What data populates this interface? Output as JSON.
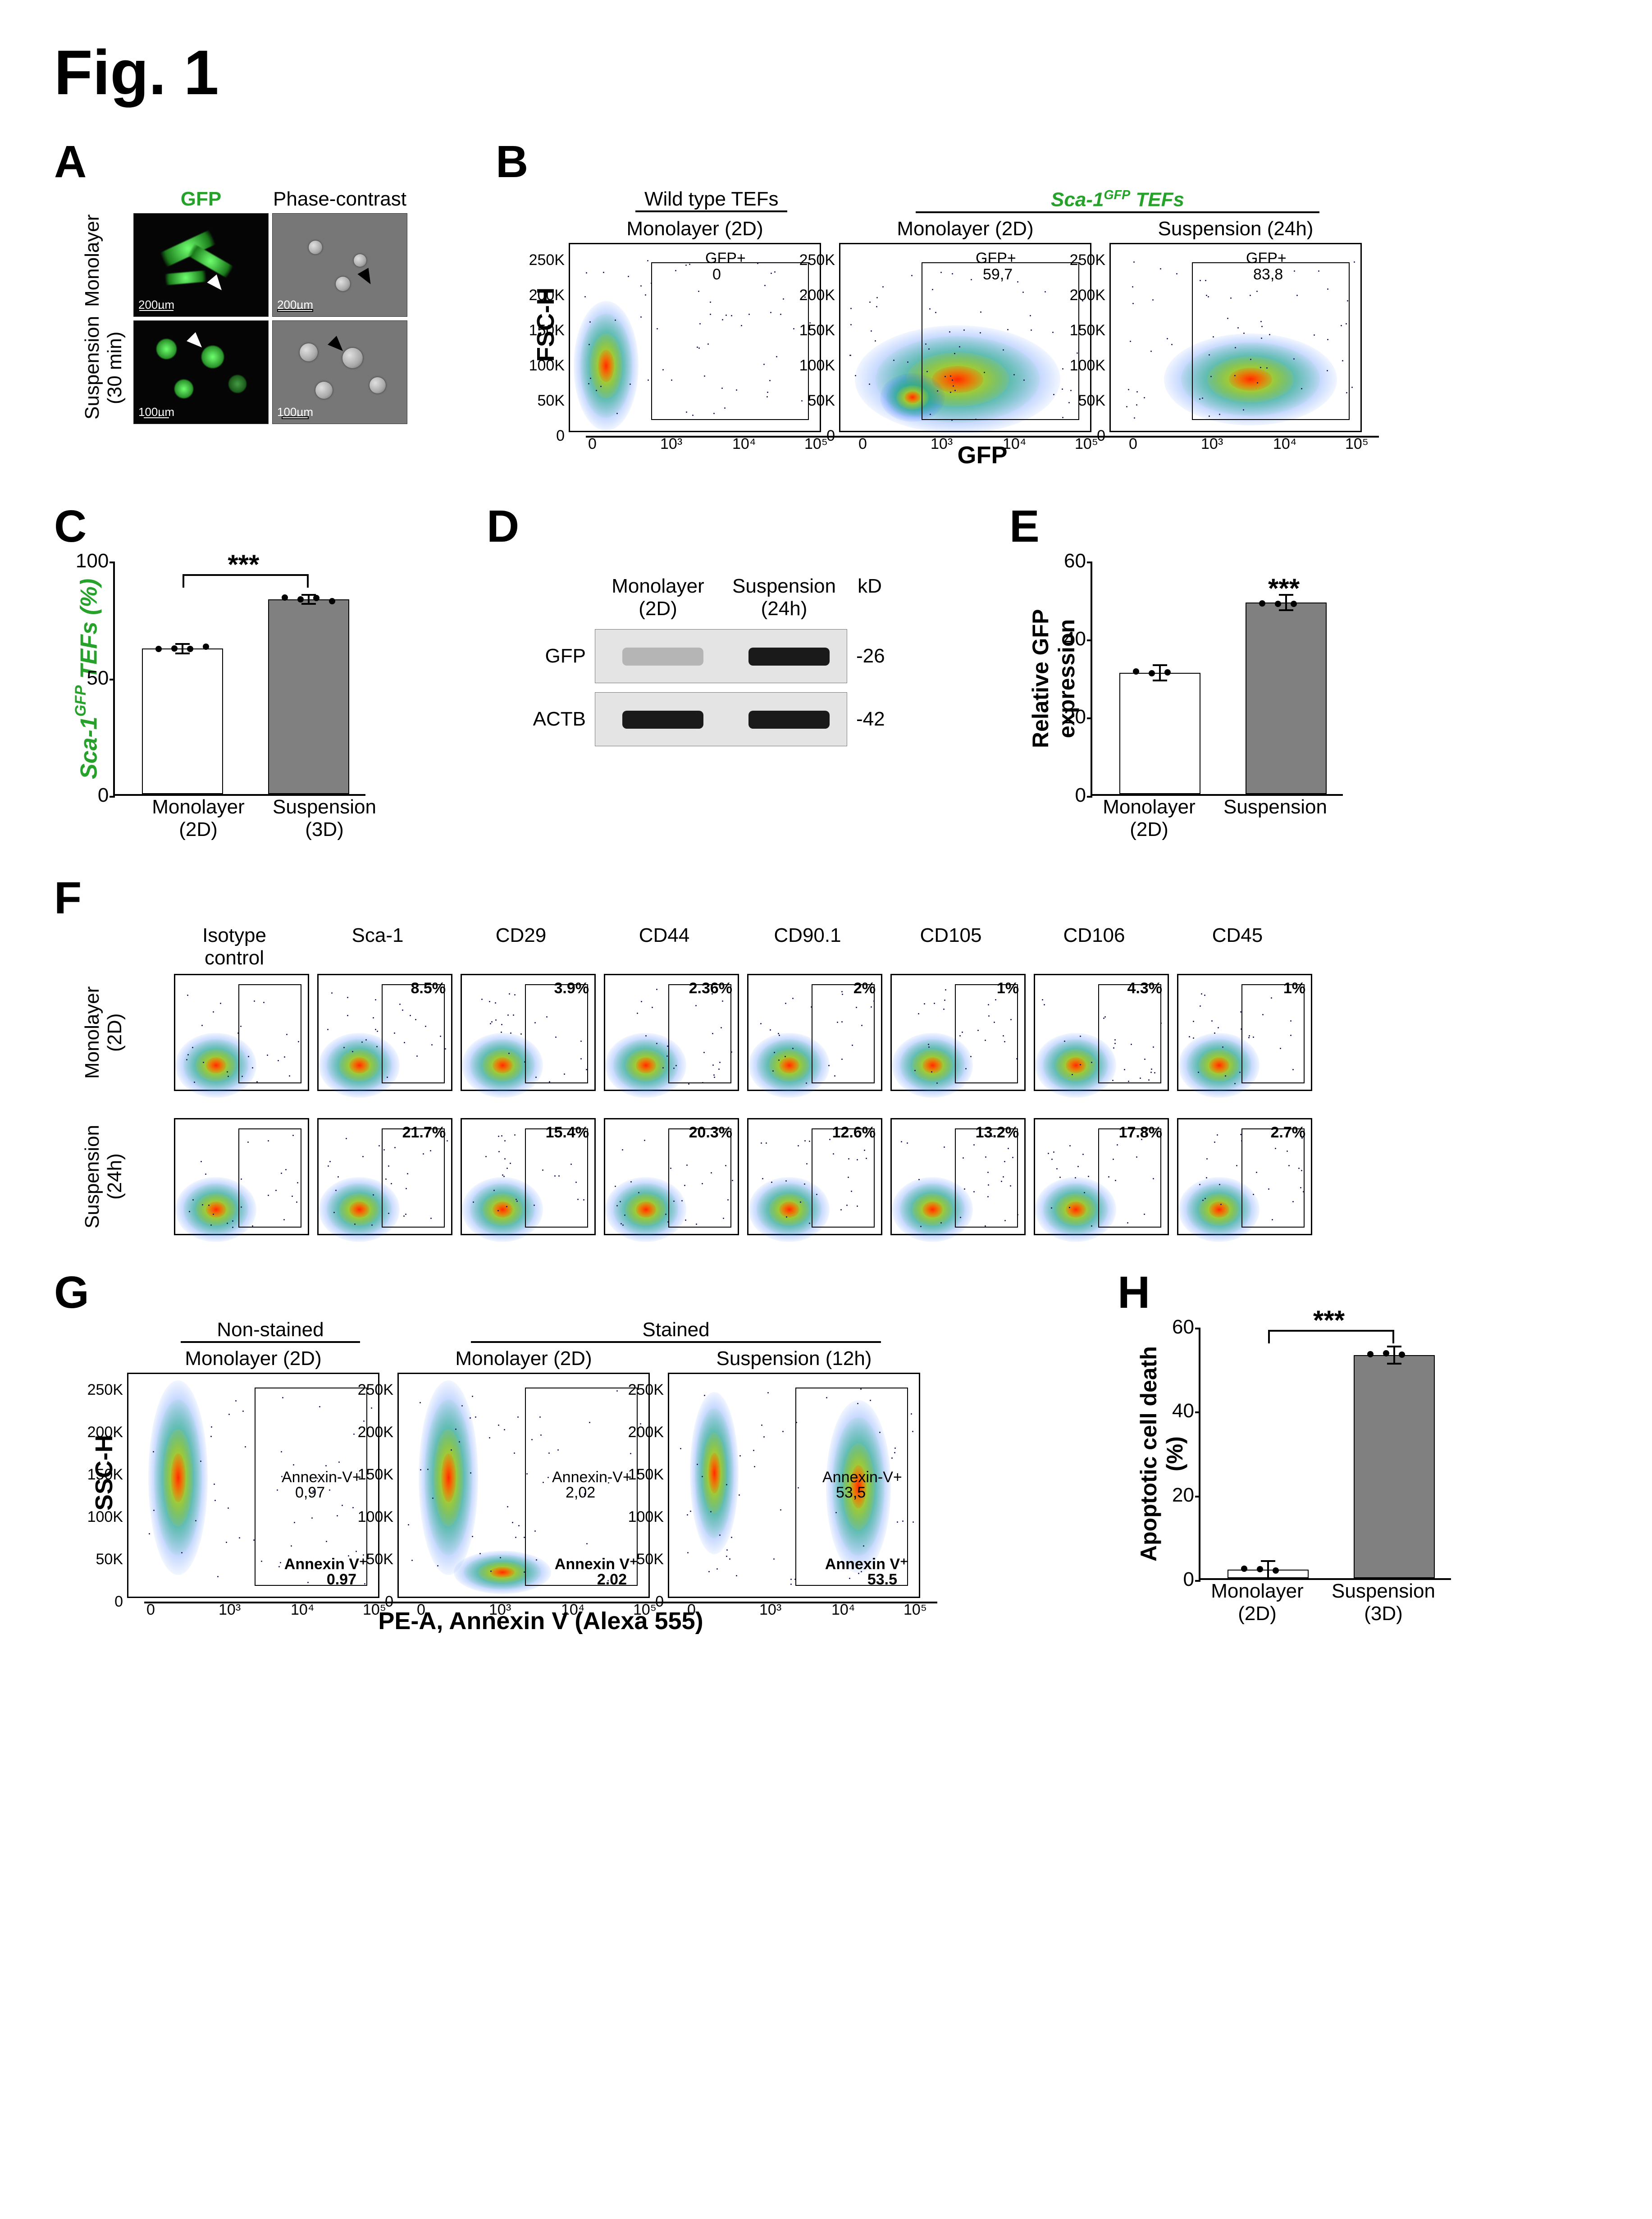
{
  "figure_label": "Fig. 1",
  "colors": {
    "green": "#26a22b",
    "bar_fill_gray": "#808080",
    "bar_fill_white": "#ffffff",
    "heat_core": "#ff2a00",
    "heat_mid": "#ffd400",
    "heat_out": "#29d63a",
    "heat_edge": "#1560ff"
  },
  "A": {
    "col_labels": [
      "GFP",
      "Phase-contrast"
    ],
    "row_labels": [
      "Monolayer",
      "Suspension\n(30 min)"
    ],
    "gfp_label_color": "#26a22b",
    "scalebars": [
      "200µm",
      "200µm",
      "100µm",
      "100µm"
    ]
  },
  "B": {
    "group1": "Wild type TEFs",
    "group2_html": "Sca-1<sup>GFP</sup> TEFs",
    "plot_titles": [
      "Monolayer (2D)",
      "Monolayer (2D)",
      "Suspension (24h)"
    ],
    "gate_label": "GFP+",
    "gate_values": [
      "0",
      "59,7",
      "83,8"
    ],
    "y_axis": "FSC-H",
    "x_axis": "GFP",
    "y_ticks": [
      "0",
      "50K",
      "100K",
      "150K",
      "200K",
      "250K"
    ],
    "x_ticks": [
      "0",
      "10³",
      "10⁴",
      "10⁵"
    ]
  },
  "C": {
    "y_label_html": "Sca-1<sup>GFP</sup> TEFs (%)",
    "y_ticks": [
      0,
      50,
      100
    ],
    "sig": "***",
    "bars": [
      {
        "label": "Monolayer\n(2D)",
        "value": 62,
        "fill": "#ffffff",
        "n_dots": 4
      },
      {
        "label": "Suspension\n(3D)",
        "value": 83,
        "fill": "#808080",
        "n_dots": 4
      }
    ]
  },
  "D": {
    "lane_labels": [
      "Monolayer\n(2D)",
      "Suspension\n(24h)"
    ],
    "kd_label": "kD",
    "rows": [
      {
        "name": "GFP",
        "kd": "-26",
        "band_intensity": [
          0.25,
          1.0
        ]
      },
      {
        "name": "ACTB",
        "kd": "-42",
        "band_intensity": [
          1.0,
          1.0
        ]
      }
    ]
  },
  "E": {
    "y_label": "Relative GFP expression",
    "y_ticks": [
      0,
      20,
      40,
      60
    ],
    "sig": "***",
    "bars": [
      {
        "label": "Monolayer\n(2D)",
        "value": 31,
        "fill": "#ffffff",
        "n_dots": 3
      },
      {
        "label": "Suspension",
        "value": 49,
        "fill": "#808080",
        "n_dots": 3
      }
    ]
  },
  "F": {
    "row_labels": [
      "Monolayer\n(2D)",
      "Suspension\n(24h)"
    ],
    "markers": [
      "Isotype\ncontrol",
      "Sca-1",
      "CD29",
      "CD44",
      "CD90.1",
      "CD105",
      "CD106",
      "CD45"
    ],
    "values": [
      [
        "",
        "8.5%",
        "3.9%",
        "2.36%",
        "2%",
        "1%",
        "4.3%",
        "1%"
      ],
      [
        "",
        "21.7%",
        "15.4%",
        "20.3%",
        "12.6%",
        "13.2%",
        "17.8%",
        "2.7%"
      ]
    ]
  },
  "G": {
    "group1": "Non-stained",
    "group2": "Stained",
    "plot_titles": [
      "Monolayer (2D)",
      "Monolayer (2D)",
      "Suspension (12h)"
    ],
    "gate_label": "Annexin V⁺",
    "gate_values": [
      "0.97",
      "2.02",
      "53.5"
    ],
    "gate_inside_values": [
      "0,97",
      "2,02",
      "53,5"
    ],
    "y_axis": "SSC-H",
    "x_axis": "PE-A, Annexin V (Alexa 555)",
    "y_ticks": [
      "0",
      "50K",
      "100K",
      "150K",
      "200K",
      "250K"
    ],
    "x_ticks": [
      "0",
      "10³",
      "10⁴",
      "10⁵"
    ]
  },
  "H": {
    "y_label": "Apoptotic cell death (%)",
    "y_ticks": [
      0,
      20,
      40,
      60
    ],
    "sig": "***",
    "bars": [
      {
        "label": "Monolayer\n(2D)",
        "value": 2,
        "fill": "#ffffff",
        "n_dots": 3
      },
      {
        "label": "Suspension\n(3D)",
        "value": 53,
        "fill": "#808080",
        "n_dots": 3
      }
    ]
  }
}
